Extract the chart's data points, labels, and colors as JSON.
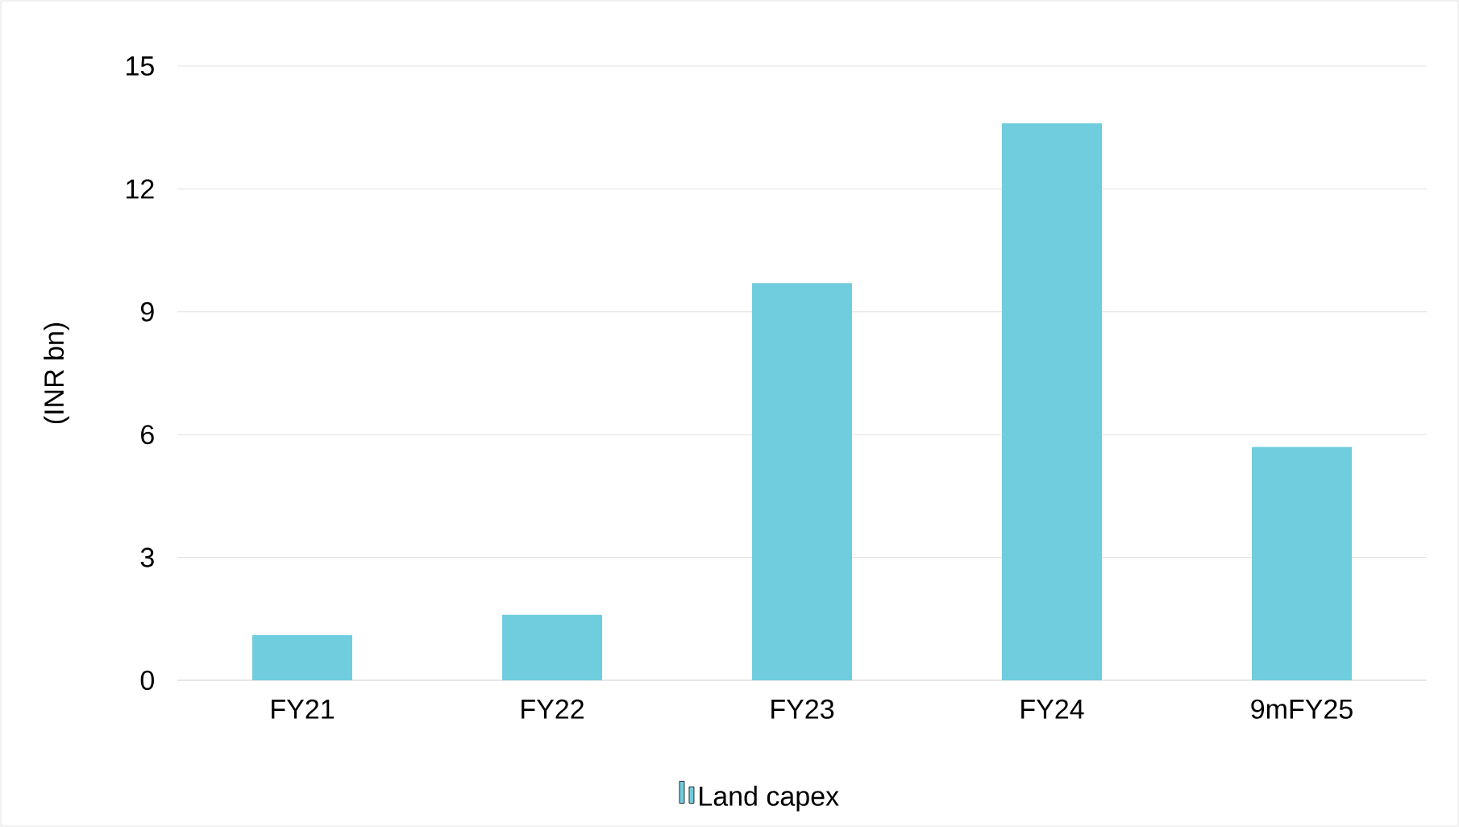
{
  "chart_data": {
    "type": "bar",
    "ylabel": "(INR bn)",
    "categories": [
      "FY21",
      "FY22",
      "FY23",
      "FY24",
      "9mFY25"
    ],
    "series": [
      {
        "name": "Land capex",
        "color": "#70cddd",
        "values": [
          1.1,
          1.6,
          9.7,
          13.6,
          5.7
        ]
      }
    ],
    "ylim": [
      0,
      15
    ],
    "yticks": [
      0,
      3,
      6,
      9,
      12,
      15
    ],
    "grid": "y",
    "legend": "bottom"
  }
}
